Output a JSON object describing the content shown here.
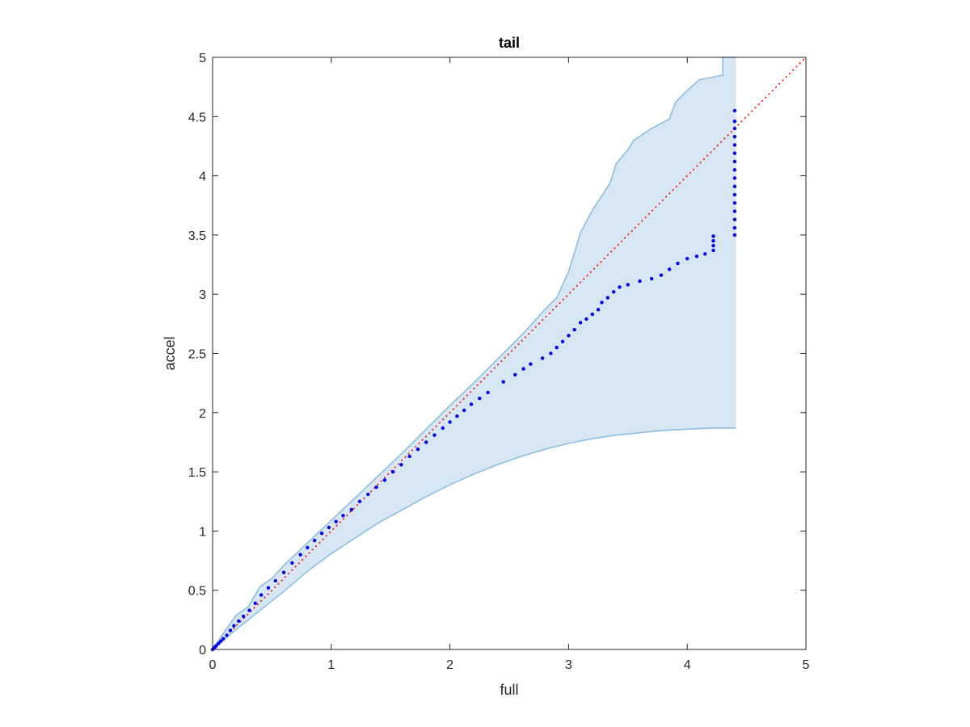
{
  "chart_data": {
    "type": "scatter",
    "title": "tail",
    "xlabel": "full",
    "ylabel": "accel",
    "xlim": [
      0,
      5
    ],
    "ylim": [
      0,
      5
    ],
    "xticks": [
      0,
      1,
      2,
      3,
      4,
      5
    ],
    "yticks": [
      0,
      0.5,
      1,
      1.5,
      2,
      2.5,
      3,
      3.5,
      4,
      4.5,
      5
    ],
    "grid": false,
    "legend": "none",
    "colors": {
      "points": "#0000ee",
      "reference_line": "#ff0000",
      "band_fill": "#d6e6f3",
      "band_edge": "#8fbfe0",
      "axes": "#262626"
    },
    "confidence_band": {
      "upper": [
        [
          0,
          0
        ],
        [
          0.1,
          0.15
        ],
        [
          0.2,
          0.29
        ],
        [
          0.3,
          0.36
        ],
        [
          0.4,
          0.53
        ],
        [
          0.5,
          0.6
        ],
        [
          0.6,
          0.71
        ],
        [
          0.8,
          0.9
        ],
        [
          1.0,
          1.09
        ],
        [
          1.2,
          1.28
        ],
        [
          1.4,
          1.47
        ],
        [
          1.6,
          1.66
        ],
        [
          1.8,
          1.86
        ],
        [
          2.0,
          2.06
        ],
        [
          2.2,
          2.25
        ],
        [
          2.4,
          2.45
        ],
        [
          2.6,
          2.65
        ],
        [
          2.8,
          2.87
        ],
        [
          2.9,
          2.97
        ],
        [
          3.0,
          3.19
        ],
        [
          3.05,
          3.35
        ],
        [
          3.1,
          3.52
        ],
        [
          3.2,
          3.71
        ],
        [
          3.3,
          3.86
        ],
        [
          3.35,
          3.94
        ],
        [
          3.4,
          4.1
        ],
        [
          3.5,
          4.22
        ],
        [
          3.55,
          4.3
        ],
        [
          3.7,
          4.4
        ],
        [
          3.85,
          4.48
        ],
        [
          3.9,
          4.62
        ],
        [
          4.0,
          4.72
        ],
        [
          4.1,
          4.81
        ],
        [
          4.2,
          4.83
        ],
        [
          4.3,
          4.85
        ],
        [
          4.3,
          5.0
        ],
        [
          4.41,
          5.0
        ]
      ],
      "lower": [
        [
          0,
          0
        ],
        [
          0.2,
          0.17
        ],
        [
          0.4,
          0.33
        ],
        [
          0.6,
          0.49
        ],
        [
          0.8,
          0.66
        ],
        [
          1.0,
          0.81
        ],
        [
          1.2,
          0.94
        ],
        [
          1.4,
          1.07
        ],
        [
          1.6,
          1.18
        ],
        [
          1.8,
          1.29
        ],
        [
          2.0,
          1.39
        ],
        [
          2.2,
          1.48
        ],
        [
          2.4,
          1.56
        ],
        [
          2.6,
          1.63
        ],
        [
          2.8,
          1.69
        ],
        [
          3.0,
          1.74
        ],
        [
          3.2,
          1.78
        ],
        [
          3.4,
          1.81
        ],
        [
          3.6,
          1.83
        ],
        [
          3.8,
          1.85
        ],
        [
          4.0,
          1.86
        ],
        [
          4.2,
          1.87
        ],
        [
          4.41,
          1.87
        ]
      ]
    },
    "reference_line": {
      "from": [
        0,
        0
      ],
      "to": [
        5,
        5
      ],
      "style": "dotted"
    },
    "series": [
      {
        "points": [
          [
            0.0,
            0.0
          ],
          [
            0.01,
            0.01
          ],
          [
            0.02,
            0.02
          ],
          [
            0.03,
            0.03
          ],
          [
            0.05,
            0.05
          ],
          [
            0.07,
            0.07
          ],
          [
            0.09,
            0.09
          ],
          [
            0.12,
            0.12
          ],
          [
            0.15,
            0.16
          ],
          [
            0.18,
            0.2
          ],
          [
            0.22,
            0.24
          ],
          [
            0.26,
            0.28
          ],
          [
            0.31,
            0.33
          ],
          [
            0.36,
            0.39
          ],
          [
            0.41,
            0.46
          ],
          [
            0.47,
            0.52
          ],
          [
            0.53,
            0.58
          ],
          [
            0.6,
            0.65
          ],
          [
            0.67,
            0.73
          ],
          [
            0.74,
            0.8
          ],
          [
            0.8,
            0.86
          ],
          [
            0.86,
            0.92
          ],
          [
            0.92,
            0.98
          ],
          [
            0.98,
            1.03
          ],
          [
            1.04,
            1.08
          ],
          [
            1.1,
            1.13
          ],
          [
            1.17,
            1.18
          ],
          [
            1.24,
            1.25
          ],
          [
            1.31,
            1.31
          ],
          [
            1.38,
            1.37
          ],
          [
            1.45,
            1.43
          ],
          [
            1.52,
            1.5
          ],
          [
            1.59,
            1.56
          ],
          [
            1.66,
            1.63
          ],
          [
            1.73,
            1.69
          ],
          [
            1.8,
            1.75
          ],
          [
            1.87,
            1.81
          ],
          [
            1.94,
            1.87
          ],
          [
            2.0,
            1.92
          ],
          [
            2.06,
            1.97
          ],
          [
            2.12,
            2.02
          ],
          [
            2.18,
            2.07
          ],
          [
            2.25,
            2.12
          ],
          [
            2.32,
            2.17
          ],
          [
            2.45,
            2.26
          ],
          [
            2.55,
            2.32
          ],
          [
            2.62,
            2.37
          ],
          [
            2.68,
            2.41
          ],
          [
            2.78,
            2.46
          ],
          [
            2.85,
            2.5
          ],
          [
            2.9,
            2.55
          ],
          [
            2.95,
            2.6
          ],
          [
            3.0,
            2.65
          ],
          [
            3.05,
            2.7
          ],
          [
            3.1,
            2.76
          ],
          [
            3.15,
            2.79
          ],
          [
            3.2,
            2.83
          ],
          [
            3.25,
            2.87
          ],
          [
            3.28,
            2.93
          ],
          [
            3.33,
            2.97
          ],
          [
            3.38,
            3.02
          ],
          [
            3.43,
            3.06
          ],
          [
            3.5,
            3.08
          ],
          [
            3.6,
            3.11
          ],
          [
            3.7,
            3.13
          ],
          [
            3.78,
            3.16
          ],
          [
            3.85,
            3.21
          ],
          [
            3.92,
            3.26
          ],
          [
            4.0,
            3.3
          ],
          [
            4.08,
            3.32
          ],
          [
            4.15,
            3.34
          ],
          [
            4.22,
            3.37
          ],
          [
            4.22,
            3.41
          ],
          [
            4.22,
            3.45
          ],
          [
            4.22,
            3.49
          ],
          [
            4.4,
            3.5
          ],
          [
            4.4,
            3.56
          ],
          [
            4.4,
            3.63
          ],
          [
            4.4,
            3.7
          ],
          [
            4.4,
            3.77
          ],
          [
            4.4,
            3.84
          ],
          [
            4.4,
            3.91
          ],
          [
            4.4,
            3.98
          ],
          [
            4.4,
            4.05
          ],
          [
            4.4,
            4.12
          ],
          [
            4.4,
            4.19
          ],
          [
            4.4,
            4.26
          ],
          [
            4.4,
            4.33
          ],
          [
            4.4,
            4.4
          ],
          [
            4.4,
            4.46
          ],
          [
            4.4,
            4.55
          ]
        ]
      }
    ]
  }
}
